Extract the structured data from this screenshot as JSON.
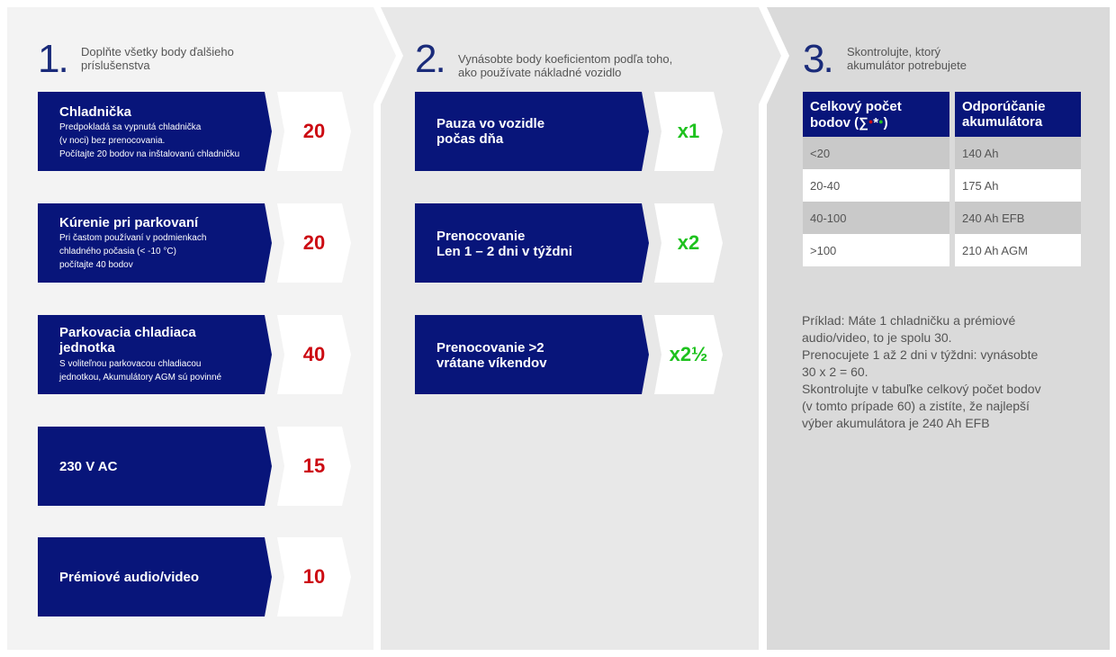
{
  "steps": [
    {
      "number": "1.",
      "text_line1": "Doplňte všetky body ďalšieho",
      "text_line2": "príslušenstva"
    },
    {
      "number": "2.",
      "text_line1": "Vynásobte body koeficientom podľa toho,",
      "text_line2": "ako používate nákladné vozidlo"
    },
    {
      "number": "3.",
      "text_line1": "Skontrolujte, ktorý",
      "text_line2": "akumulátor potrebujete"
    }
  ],
  "accessories": [
    {
      "title": "Chladnička",
      "desc1": "Predpokladá sa vypnutá chladnička",
      "desc2": "(v noci) bez prenocovania.",
      "desc3": "Počítajte 20 bodov na inštalovanú chladničku",
      "points": "20"
    },
    {
      "title": "Kúrenie pri parkovaní",
      "desc1": "Pri častom používaní v podmienkach",
      "desc2": "chladného počasia (< -10 °C)",
      "desc3": "počítajte 40 bodov",
      "points": "20"
    },
    {
      "title_line1": "Parkovacia chladiaca",
      "title_line2": "jednotka",
      "desc1": "S voliteľnou parkovacou chladiacou",
      "desc2": "jednotkou, Akumulátory AGM sú povinné",
      "points": "40"
    },
    {
      "title": "230 V AC",
      "points": "15"
    },
    {
      "title": "Prémiové audio/video",
      "points": "10"
    }
  ],
  "multipliers": [
    {
      "line1": "Pauza vo vozidle",
      "line2": "počas dňa",
      "factor": "x1"
    },
    {
      "line1": "Prenocovanie",
      "line2": "Len 1 – 2 dni v týždni",
      "factor": "x2"
    },
    {
      "line1": "Prenocovanie >2",
      "line2": "vrátane víkendov",
      "factor": "x2½"
    }
  ],
  "table": {
    "col1_line1": "Celkový počet",
    "col1_line2_prefix": "bodov (∑",
    "col1_line2_suffix": ")",
    "col2_line1": "Odporúčanie",
    "col2_line2": "akumulátora",
    "rows": [
      {
        "points": "<20",
        "battery": "140 Ah"
      },
      {
        "points": "20-40",
        "battery": "175 Ah"
      },
      {
        "points": "40-100",
        "battery": "240 Ah EFB"
      },
      {
        "points": ">100",
        "battery": "210 Ah AGM"
      }
    ]
  },
  "example": [
    "Príklad: Máte 1 chladničku a prémiové",
    "audio/video, to je spolu 30.",
    "Prenocujete 1 až 2 dni v týždni: vynásobte",
    "30 x 2 = 60.",
    "Skontrolujte v tabuľke celkový počet bodov",
    "(v tomto prípade 60) a zistíte, že najlepší",
    "výber akumulátora je 240 Ah EFB"
  ],
  "colors": {
    "navy": "#08157a",
    "points_red": "#cc0a12",
    "multiplier_green": "#1ec21e"
  }
}
